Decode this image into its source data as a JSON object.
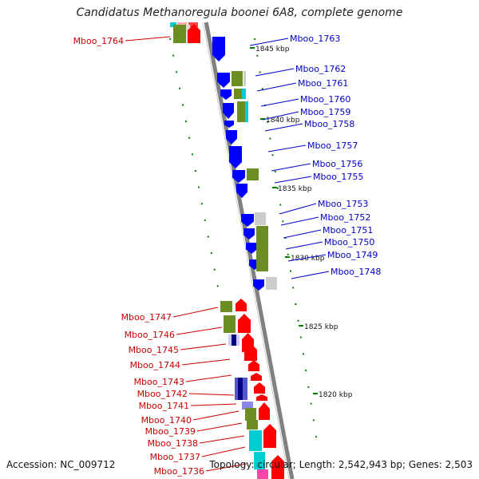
{
  "title": "Candidatus Methanoregula boonei 6A8, complete genome",
  "footer": {
    "accession": "Accession: NC_009712",
    "topology": "Topology: circular; Length: 2,542,943 bp; Genes: 2,503"
  },
  "colors": {
    "backbone": "#808080",
    "forward_gene": "#ff0000",
    "reverse_gene": "#0000ff",
    "olive": "#6b8e23",
    "cyan": "#00ced1",
    "gray": "#bbbbbb",
    "navy": "#000080",
    "label_left": "#cc0000",
    "label_right": "#0000cc",
    "ticks": "#008000"
  },
  "kbp_labels": [
    {
      "text": "1845 kbp"
    },
    {
      "text": "1840 kbp"
    },
    {
      "text": "1835 kbp"
    },
    {
      "text": "1830 kbp"
    },
    {
      "text": "1825 kbp"
    },
    {
      "text": "1820 kbp"
    }
  ],
  "right_genes": [
    "Mboo_1763",
    "Mboo_1762",
    "Mboo_1761",
    "Mboo_1760",
    "Mboo_1759",
    "Mboo_1758",
    "Mboo_1757",
    "Mboo_1756",
    "Mboo_1755",
    "Mboo_1753",
    "Mboo_1752",
    "Mboo_1751",
    "Mboo_1750",
    "Mboo_1749",
    "Mboo_1748"
  ],
  "left_genes": [
    "Mboo_1764",
    "Mboo_1747",
    "Mboo_1746",
    "Mboo_1745",
    "Mboo_1744",
    "Mboo_1743",
    "Mboo_1742",
    "Mboo_1741",
    "Mboo_1740",
    "Mboo_1739",
    "Mboo_1738",
    "Mboo_1737",
    "Mboo_1736"
  ]
}
